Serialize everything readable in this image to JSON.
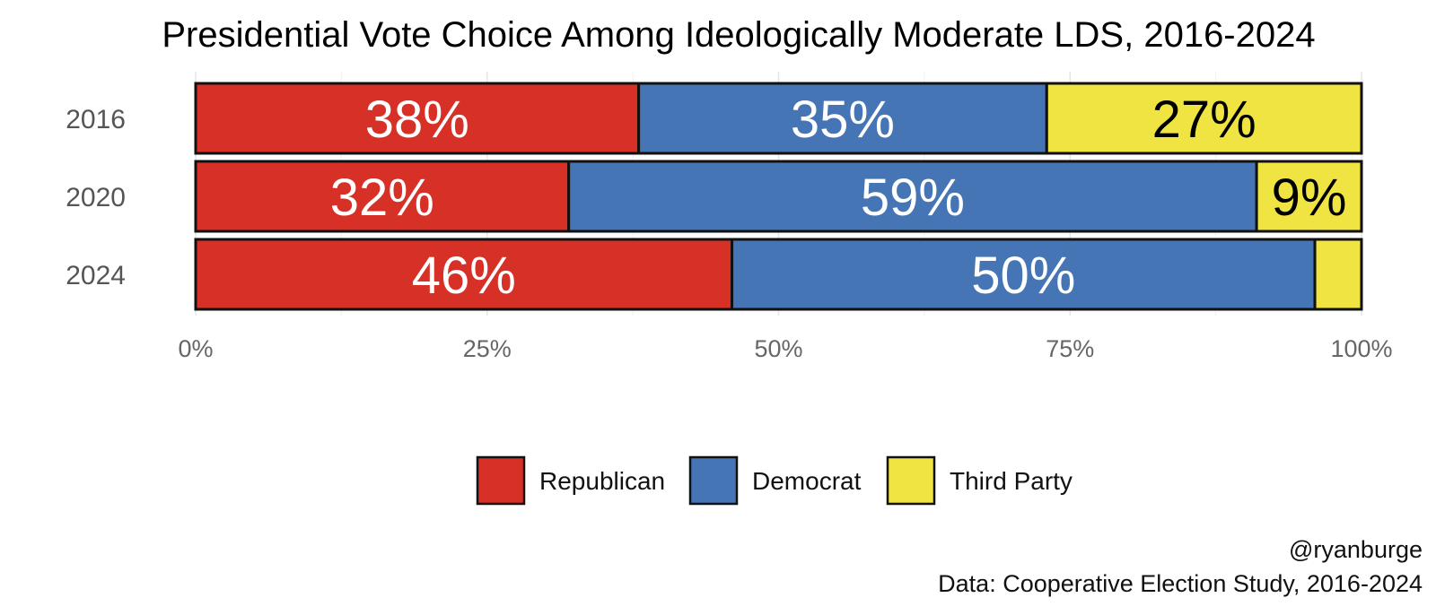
{
  "chart_data": {
    "type": "bar",
    "orientation": "horizontal",
    "stacked": true,
    "title": "Presidential Vote Choice Among Ideologically Moderate LDS, 2016-2024",
    "categories": [
      "2016",
      "2020",
      "2024"
    ],
    "series": [
      {
        "name": "Republican",
        "color": "#d73027",
        "label_color": "#ffffff",
        "values": [
          38,
          32,
          46
        ],
        "labels": [
          "38%",
          "32%",
          "46%"
        ]
      },
      {
        "name": "Democrat",
        "color": "#4575b4",
        "label_color": "#ffffff",
        "values": [
          35,
          59,
          50
        ],
        "labels": [
          "35%",
          "59%",
          "50%"
        ]
      },
      {
        "name": "Third Party",
        "color": "#f0e442",
        "label_color": "#000000",
        "values": [
          27,
          9,
          4
        ],
        "labels": [
          "27%",
          "9%",
          ""
        ]
      }
    ],
    "xlim": [
      0,
      100
    ],
    "x_ticks": [
      0,
      25,
      50,
      75,
      100
    ],
    "x_tick_labels": [
      "0%",
      "25%",
      "50%",
      "75%",
      "100%"
    ],
    "grid": true,
    "legend_position": "bottom",
    "caption": [
      "@ryanburge",
      "Data: Cooperative Election Study, 2016-2024"
    ]
  }
}
